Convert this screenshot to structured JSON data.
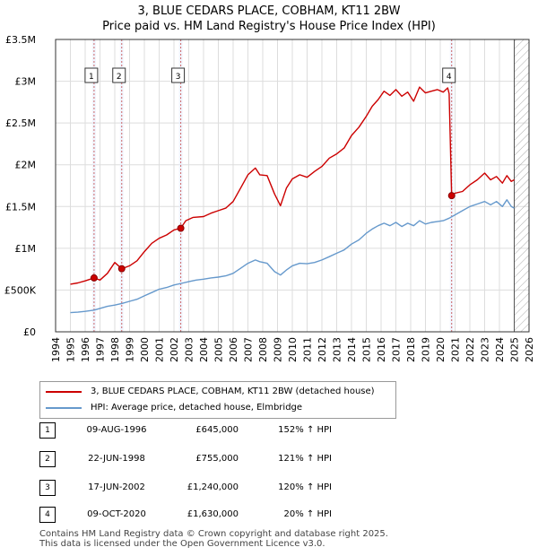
{
  "title": {
    "line1": "3, BLUE CEDARS PLACE, COBHAM, KT11 2BW",
    "line2": "Price paid vs. HM Land Registry's House Price Index (HPI)"
  },
  "legend": {
    "property": "3, BLUE CEDARS PLACE, COBHAM, KT11 2BW (detached house)",
    "hpi": "HPI: Average price, detached house, Elmbridge"
  },
  "colors": {
    "property": "#cc0000",
    "hpi": "#6699cc",
    "grid": "#dddddd",
    "marker_line": "#cc6666",
    "future_hatch": "#999999"
  },
  "transactions": [
    {
      "num": "1",
      "date": "09-AUG-1996",
      "price": "£645,000",
      "hpi": "152% ↑ HPI"
    },
    {
      "num": "2",
      "date": "22-JUN-1998",
      "price": "£755,000",
      "hpi": "121% ↑ HPI"
    },
    {
      "num": "3",
      "date": "17-JUN-2002",
      "price": "£1,240,000",
      "hpi": "120% ↑ HPI"
    },
    {
      "num": "4",
      "date": "09-OCT-2020",
      "price": "£1,630,000",
      "hpi": "20% ↑ HPI"
    }
  ],
  "footer": {
    "line1": "Contains HM Land Registry data © Crown copyright and database right 2025.",
    "line2": "This data is licensed under the Open Government Licence v3.0."
  },
  "chart_data": {
    "type": "line",
    "title": "3, BLUE CEDARS PLACE, COBHAM, KT11 2BW — Price paid vs. HM Land Registry's House Price Index (HPI)",
    "xlabel": "",
    "ylabel": "",
    "xlim": [
      1994,
      2026
    ],
    "ylim": [
      0,
      3500000
    ],
    "x_ticks": [
      1994,
      1995,
      1996,
      1997,
      1998,
      1999,
      2000,
      2001,
      2002,
      2003,
      2004,
      2005,
      2006,
      2007,
      2008,
      2009,
      2010,
      2011,
      2012,
      2013,
      2014,
      2015,
      2016,
      2017,
      2018,
      2019,
      2020,
      2021,
      2022,
      2023,
      2024,
      2025,
      2026
    ],
    "y_ticks": [
      0,
      500000,
      1000000,
      1500000,
      2000000,
      2500000,
      3000000,
      3500000
    ],
    "y_tick_labels": [
      "£0",
      "£500K",
      "£1M",
      "£1.5M",
      "£2M",
      "£2.5M",
      "£3M",
      "£3.5M"
    ],
    "future_hatch_from": 2025.0,
    "series": [
      {
        "name": "3, BLUE CEDARS PLACE, COBHAM, KT11 2BW (detached house)",
        "x": [
          1995.0,
          1995.5,
          1996.0,
          1996.6,
          1997.0,
          1997.5,
          1998.0,
          1998.47,
          1999.0,
          1999.5,
          2000.0,
          2000.5,
          2001.0,
          2001.5,
          2002.0,
          2002.46,
          2002.8,
          2003.3,
          2004.0,
          2004.5,
          2005.0,
          2005.5,
          2006.0,
          2006.5,
          2007.0,
          2007.5,
          2007.8,
          2008.3,
          2008.8,
          2009.2,
          2009.6,
          2010.0,
          2010.5,
          2011.0,
          2011.5,
          2012.0,
          2012.5,
          2013.0,
          2013.5,
          2014.0,
          2014.5,
          2015.0,
          2015.4,
          2015.8,
          2016.2,
          2016.6,
          2017.0,
          2017.4,
          2017.8,
          2018.2,
          2018.6,
          2019.0,
          2019.4,
          2019.8,
          2020.2,
          2020.5,
          2020.6,
          2020.77,
          2021.0,
          2021.5,
          2022.0,
          2022.5,
          2023.0,
          2023.4,
          2023.8,
          2024.2,
          2024.5,
          2024.8,
          2025.0
        ],
        "values": [
          570000,
          585000,
          610000,
          645000,
          620000,
          700000,
          830000,
          755000,
          790000,
          850000,
          960000,
          1060000,
          1120000,
          1160000,
          1220000,
          1240000,
          1330000,
          1370000,
          1380000,
          1420000,
          1450000,
          1480000,
          1560000,
          1720000,
          1880000,
          1960000,
          1880000,
          1870000,
          1650000,
          1510000,
          1720000,
          1830000,
          1880000,
          1850000,
          1920000,
          1980000,
          2080000,
          2130000,
          2200000,
          2350000,
          2450000,
          2580000,
          2700000,
          2780000,
          2880000,
          2830000,
          2900000,
          2820000,
          2870000,
          2760000,
          2930000,
          2860000,
          2880000,
          2900000,
          2870000,
          2920000,
          2850000,
          1630000,
          1660000,
          1680000,
          1760000,
          1820000,
          1900000,
          1820000,
          1860000,
          1780000,
          1870000,
          1800000,
          1820000
        ]
      },
      {
        "name": "HPI: Average price, detached house, Elmbridge",
        "x": [
          1995.0,
          1995.5,
          1996.0,
          1996.6,
          1997.0,
          1997.5,
          1998.0,
          1998.5,
          1999.0,
          1999.5,
          2000.0,
          2000.5,
          2001.0,
          2001.5,
          2002.0,
          2002.5,
          2003.0,
          2003.5,
          2004.0,
          2004.5,
          2005.0,
          2005.5,
          2006.0,
          2006.5,
          2007.0,
          2007.5,
          2007.8,
          2008.3,
          2008.8,
          2009.2,
          2009.6,
          2010.0,
          2010.5,
          2011.0,
          2011.5,
          2012.0,
          2012.5,
          2013.0,
          2013.5,
          2014.0,
          2014.5,
          2015.0,
          2015.4,
          2015.8,
          2016.2,
          2016.6,
          2017.0,
          2017.4,
          2017.8,
          2018.2,
          2018.6,
          2019.0,
          2019.4,
          2019.8,
          2020.2,
          2020.6,
          2021.0,
          2021.5,
          2022.0,
          2022.5,
          2023.0,
          2023.4,
          2023.8,
          2024.2,
          2024.5,
          2024.8,
          2025.0
        ],
        "values": [
          230000,
          235000,
          245000,
          260000,
          280000,
          305000,
          320000,
          340000,
          365000,
          390000,
          430000,
          470000,
          510000,
          530000,
          560000,
          580000,
          600000,
          620000,
          630000,
          645000,
          655000,
          670000,
          700000,
          760000,
          820000,
          860000,
          840000,
          820000,
          720000,
          680000,
          740000,
          790000,
          820000,
          815000,
          830000,
          860000,
          900000,
          940000,
          980000,
          1050000,
          1100000,
          1180000,
          1230000,
          1270000,
          1300000,
          1270000,
          1310000,
          1260000,
          1300000,
          1270000,
          1330000,
          1290000,
          1310000,
          1320000,
          1330000,
          1360000,
          1400000,
          1450000,
          1500000,
          1530000,
          1560000,
          1520000,
          1560000,
          1500000,
          1580000,
          1500000,
          1480000
        ]
      }
    ],
    "sale_points": [
      {
        "label": "1",
        "x": 1996.6,
        "value": 645000
      },
      {
        "label": "2",
        "x": 1998.47,
        "value": 755000
      },
      {
        "label": "3",
        "x": 2002.46,
        "value": 1240000
      },
      {
        "label": "4",
        "x": 2020.77,
        "value": 1630000
      }
    ]
  }
}
